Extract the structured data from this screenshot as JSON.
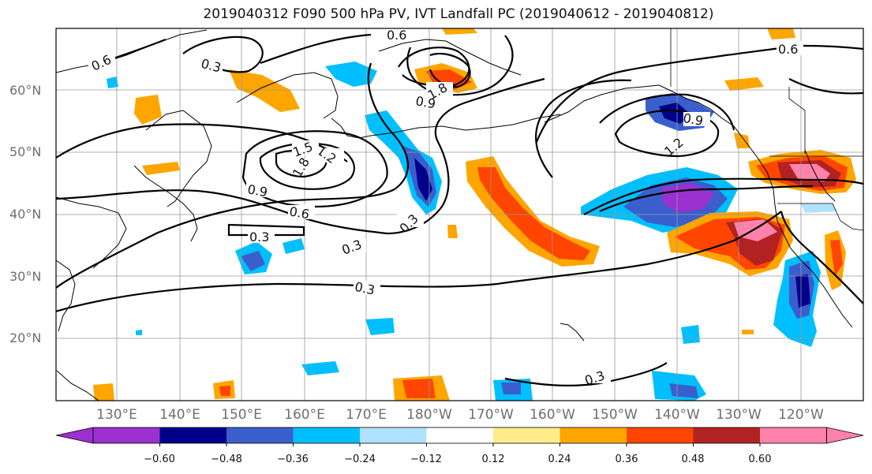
{
  "title": "2019040312 F090 500 hPa PV, IVT Landfall PC (2019040612 - 2019040812)",
  "map": {
    "lat_labels": [
      "60°N",
      "50°N",
      "40°N",
      "30°N",
      "20°N"
    ],
    "lon_labels": [
      "130°E",
      "140°E",
      "150°E",
      "160°E",
      "170°E",
      "180°W",
      "170°W",
      "160°W",
      "150°W",
      "140°W",
      "130°W",
      "120°W"
    ],
    "contour_labels": [
      "0.3",
      "0.6",
      "0.9",
      "1.2",
      "1.5",
      "1.8"
    ],
    "gridlines": true
  },
  "colorbar": {
    "tick_labels": [
      "−0.60",
      "−0.48",
      "−0.36",
      "−0.24",
      "−0.12",
      "0.12",
      "0.24",
      "0.36",
      "0.48",
      "0.60"
    ],
    "colors": [
      "#9b30d0",
      "#00008b",
      "#3a5fcd",
      "#00bfff",
      "#b0e2ff",
      "#ffffff",
      "#ffec8b",
      "#ffa500",
      "#ff4500",
      "#b22222",
      "#ff82ab"
    ]
  }
}
